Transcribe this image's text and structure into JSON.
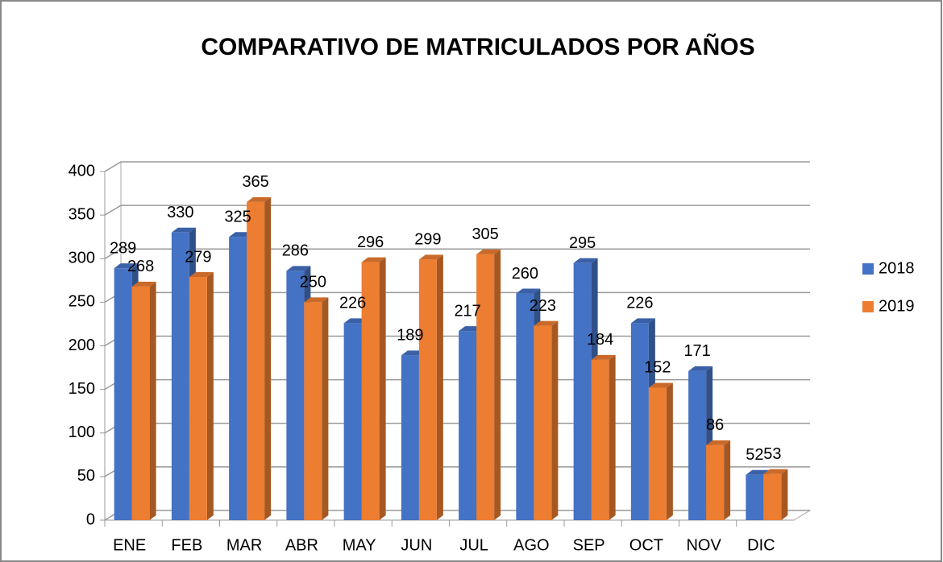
{
  "chart_data": {
    "type": "bar",
    "title": "COMPARATIVO DE MATRICULADOS POR AÑOS",
    "categories": [
      "ENE",
      "FEB",
      "MAR",
      "ABR",
      "MAY",
      "JUN",
      "JUL",
      "AGO",
      "SEP",
      "OCT",
      "NOV",
      "DIC"
    ],
    "series": [
      {
        "name": "2018",
        "color": "#4472c4",
        "values": [
          289,
          330,
          325,
          286,
          226,
          189,
          217,
          260,
          295,
          226,
          171,
          52
        ]
      },
      {
        "name": "2019",
        "color": "#ed7d31",
        "values": [
          268,
          279,
          365,
          250,
          296,
          299,
          305,
          223,
          184,
          152,
          86,
          53
        ]
      }
    ],
    "ylim": [
      0,
      400
    ],
    "yticks": [
      0,
      50,
      100,
      150,
      200,
      250,
      300,
      350,
      400
    ],
    "grid": true,
    "legend": "right"
  }
}
